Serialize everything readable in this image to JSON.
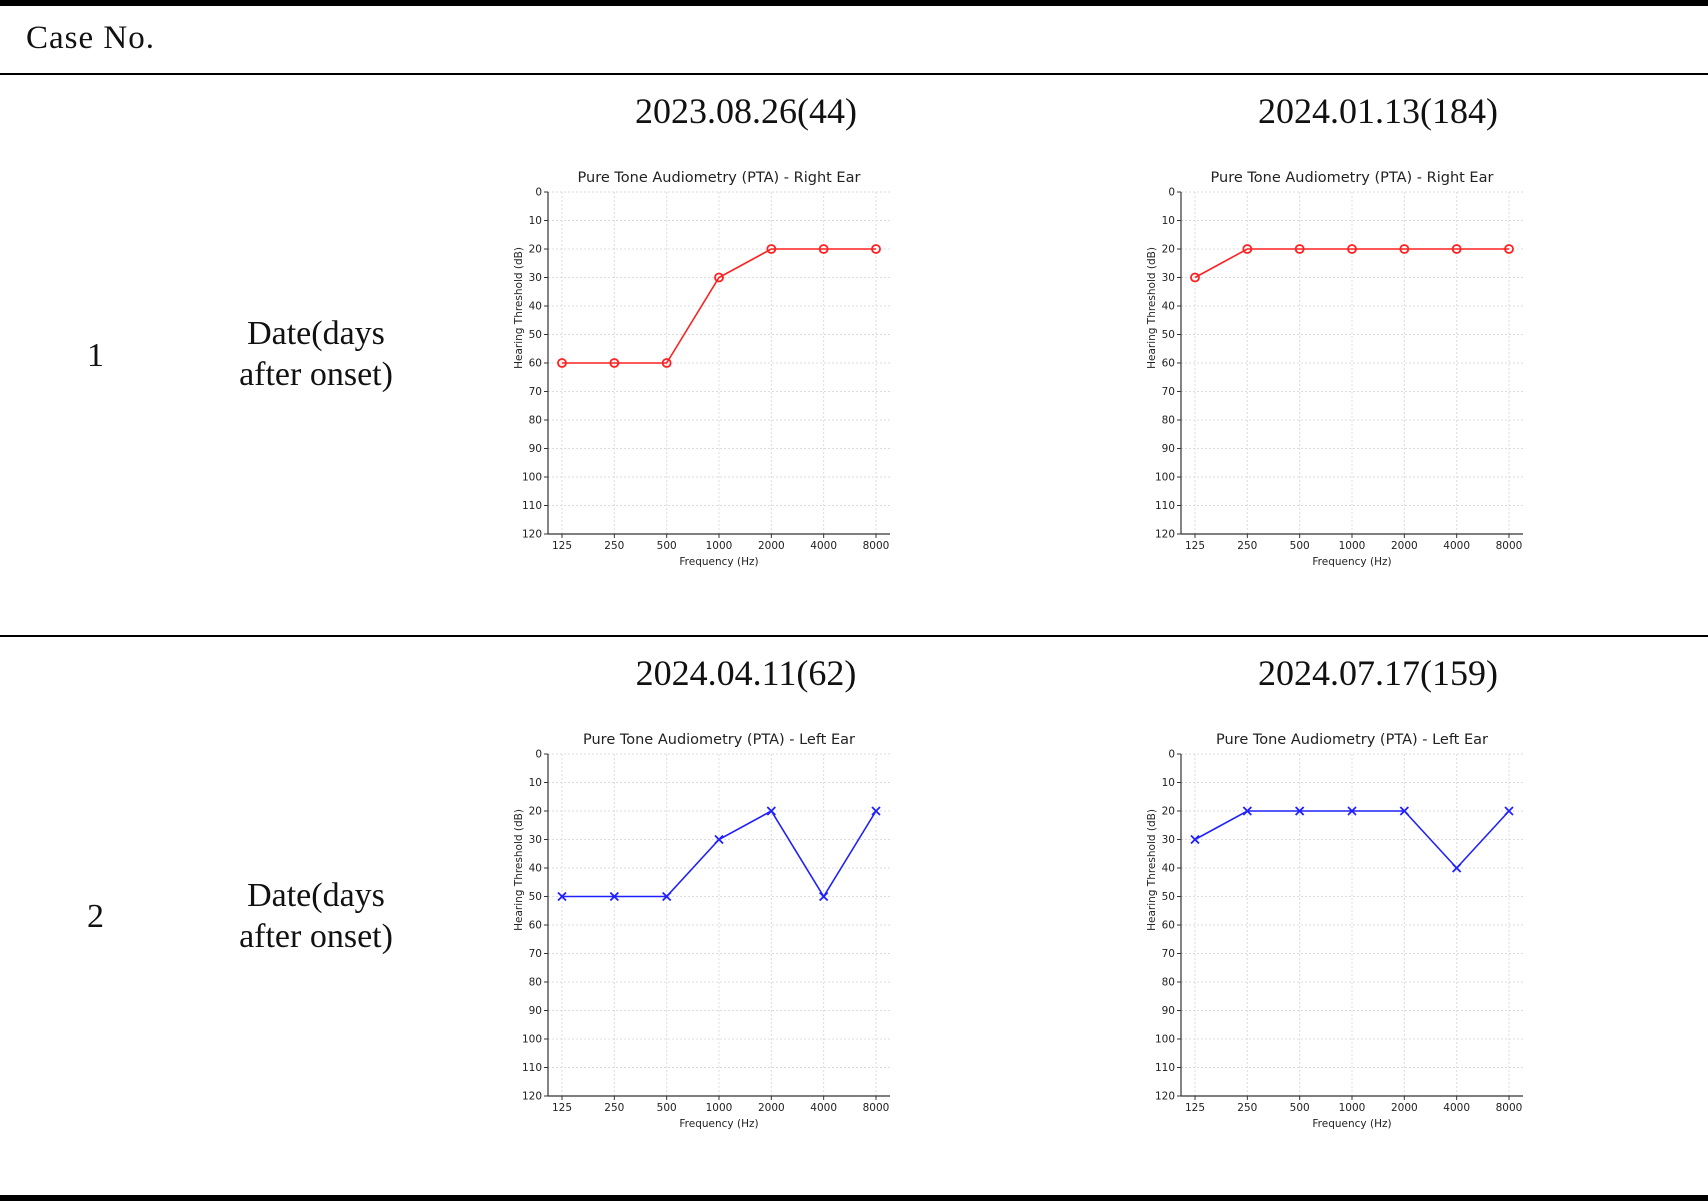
{
  "header": {
    "label": "Case  No."
  },
  "rows": [
    {
      "case_no": "1",
      "date_label_line1": "Date(days",
      "date_label_line2": "after  onset)"
    },
    {
      "case_no": "2",
      "date_label_line1": "Date(days",
      "date_label_line2": "after  onset)"
    }
  ],
  "colors": {
    "right_ear": "#ff2020",
    "left_ear": "#2020ff",
    "rule": "#000000"
  },
  "chart_data": [
    {
      "type": "line",
      "date": "2023.08.26(44)",
      "title": "Pure Tone Audiometry (PTA) - Right Ear",
      "xlabel": "Frequency (Hz)",
      "ylabel": "Hearing Threshold (dB)",
      "categories": [
        "125",
        "250",
        "500",
        "1000",
        "2000",
        "4000",
        "8000"
      ],
      "series": [
        {
          "values": [
            60,
            60,
            60,
            30,
            20,
            20,
            20
          ],
          "marker": "o",
          "color": "#ff2020"
        }
      ],
      "ylim": [
        0,
        120
      ],
      "y_inverted": true,
      "yticks": [
        "0",
        "10",
        "20",
        "30",
        "40",
        "50",
        "60",
        "70",
        "80",
        "90",
        "100",
        "110",
        "120"
      ],
      "grid": true
    },
    {
      "type": "line",
      "date": "2024.01.13(184)",
      "title": "Pure Tone Audiometry (PTA) - Right Ear",
      "xlabel": "Frequency (Hz)",
      "ylabel": "Hearing Threshold (dB)",
      "categories": [
        "125",
        "250",
        "500",
        "1000",
        "2000",
        "4000",
        "8000"
      ],
      "series": [
        {
          "values": [
            30,
            20,
            20,
            20,
            20,
            20,
            20
          ],
          "marker": "o",
          "color": "#ff2020"
        }
      ],
      "ylim": [
        0,
        120
      ],
      "y_inverted": true,
      "yticks": [
        "0",
        "10",
        "20",
        "30",
        "40",
        "50",
        "60",
        "70",
        "80",
        "90",
        "100",
        "110",
        "120"
      ],
      "grid": true
    },
    {
      "type": "line",
      "date": "2024.04.11(62)",
      "title": "Pure Tone Audiometry (PTA) - Left Ear",
      "xlabel": "Frequency (Hz)",
      "ylabel": "Hearing Threshold (dB)",
      "categories": [
        "125",
        "250",
        "500",
        "1000",
        "2000",
        "4000",
        "8000"
      ],
      "series": [
        {
          "values": [
            50,
            50,
            50,
            30,
            20,
            50,
            20
          ],
          "marker": "x",
          "color": "#2020ff"
        }
      ],
      "ylim": [
        0,
        120
      ],
      "y_inverted": true,
      "yticks": [
        "0",
        "10",
        "20",
        "30",
        "40",
        "50",
        "60",
        "70",
        "80",
        "90",
        "100",
        "110",
        "120"
      ],
      "grid": true
    },
    {
      "type": "line",
      "date": "2024.07.17(159)",
      "title": "Pure Tone Audiometry (PTA) - Left Ear",
      "xlabel": "Frequency (Hz)",
      "ylabel": "Hearing Threshold (dB)",
      "categories": [
        "125",
        "250",
        "500",
        "1000",
        "2000",
        "4000",
        "8000"
      ],
      "series": [
        {
          "values": [
            30,
            20,
            20,
            20,
            20,
            40,
            20
          ],
          "marker": "x",
          "color": "#2020ff"
        }
      ],
      "ylim": [
        0,
        120
      ],
      "y_inverted": true,
      "yticks": [
        "0",
        "10",
        "20",
        "30",
        "40",
        "50",
        "60",
        "70",
        "80",
        "90",
        "100",
        "110",
        "120"
      ],
      "grid": true
    }
  ]
}
